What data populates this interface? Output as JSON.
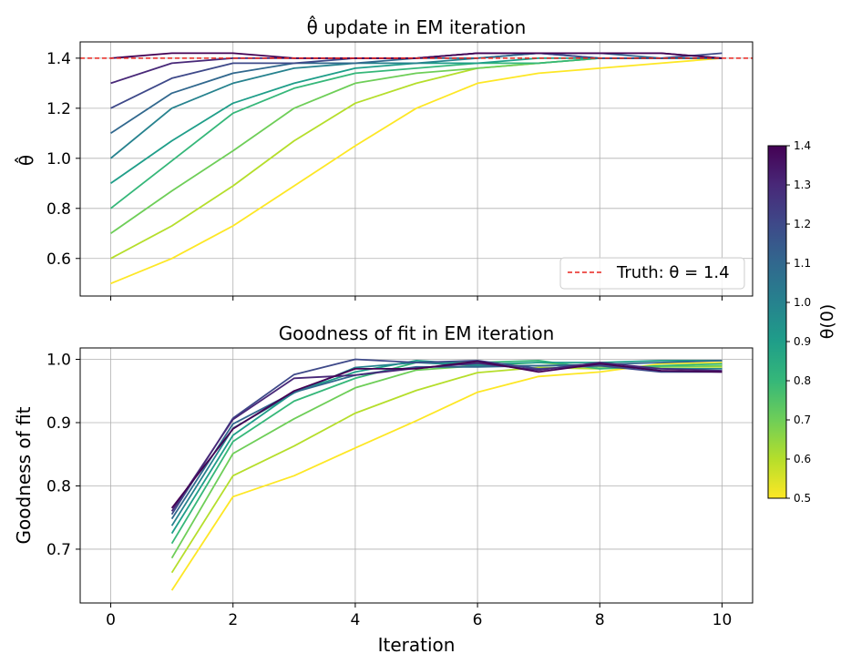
{
  "chart_data": [
    {
      "type": "line",
      "title": "θ̂ update in EM iteration",
      "ylabel": "θ̂",
      "xlabel": "",
      "xlim": [
        -0.5,
        10.5
      ],
      "ylim": [
        0.45,
        1.465
      ],
      "xticks": [
        0,
        2,
        4,
        6,
        8,
        10
      ],
      "yticks": [
        0.6,
        0.8,
        1.0,
        1.2,
        1.4
      ],
      "yticklabels": [
        "0.6",
        "0.8",
        "1.0",
        "1.2",
        "1.4"
      ],
      "xticklabels_visible": false,
      "grid": true,
      "legend": {
        "position": "lower-right",
        "entries": [
          "Truth: θ = 1.4"
        ]
      },
      "reference_line": {
        "y": 1.4,
        "color": "#e8251e",
        "style": "dashed",
        "label": "Truth: θ = 1.4"
      },
      "x": [
        0,
        1,
        2,
        3,
        4,
        5,
        6,
        7,
        8,
        9,
        10
      ],
      "series": [
        {
          "theta0": 0.5,
          "values": [
            0.5,
            0.6,
            0.73,
            0.89,
            1.05,
            1.2,
            1.3,
            1.34,
            1.36,
            1.38,
            1.4
          ]
        },
        {
          "theta0": 0.6,
          "values": [
            0.6,
            0.73,
            0.89,
            1.07,
            1.22,
            1.3,
            1.36,
            1.38,
            1.4,
            1.4,
            1.4
          ]
        },
        {
          "theta0": 0.7,
          "values": [
            0.7,
            0.87,
            1.03,
            1.2,
            1.3,
            1.34,
            1.36,
            1.38,
            1.4,
            1.4,
            1.4
          ]
        },
        {
          "theta0": 0.8,
          "values": [
            0.8,
            0.99,
            1.18,
            1.28,
            1.34,
            1.36,
            1.38,
            1.38,
            1.4,
            1.4,
            1.4
          ]
        },
        {
          "theta0": 0.9,
          "values": [
            0.9,
            1.07,
            1.22,
            1.3,
            1.36,
            1.38,
            1.38,
            1.4,
            1.4,
            1.4,
            1.4
          ]
        },
        {
          "theta0": 1.0,
          "values": [
            1.0,
            1.2,
            1.3,
            1.36,
            1.38,
            1.38,
            1.4,
            1.42,
            1.4,
            1.4,
            1.4
          ]
        },
        {
          "theta0": 1.1,
          "values": [
            1.1,
            1.26,
            1.34,
            1.38,
            1.38,
            1.4,
            1.4,
            1.42,
            1.42,
            1.4,
            1.4
          ]
        },
        {
          "theta0": 1.2,
          "values": [
            1.2,
            1.32,
            1.38,
            1.38,
            1.4,
            1.4,
            1.42,
            1.42,
            1.4,
            1.4,
            1.42
          ]
        },
        {
          "theta0": 1.3,
          "values": [
            1.3,
            1.38,
            1.4,
            1.4,
            1.4,
            1.4,
            1.42,
            1.42,
            1.42,
            1.42,
            1.4
          ]
        },
        {
          "theta0": 1.4,
          "values": [
            1.4,
            1.42,
            1.42,
            1.4,
            1.4,
            1.4,
            1.42,
            1.42,
            1.42,
            1.42,
            1.4
          ]
        }
      ]
    },
    {
      "type": "line",
      "title": "Goodness of fit in EM iteration",
      "xlabel": "Iteration",
      "ylabel": "Goodness of fit",
      "xlim": [
        -0.5,
        10.5
      ],
      "ylim": [
        0.615,
        1.018
      ],
      "xticks": [
        0,
        2,
        4,
        6,
        8,
        10
      ],
      "xticklabels": [
        "0",
        "2",
        "4",
        "6",
        "8",
        "10"
      ],
      "yticks": [
        0.7,
        0.8,
        0.9,
        1.0
      ],
      "yticklabels": [
        "0.7",
        "0.8",
        "0.9",
        "1.0"
      ],
      "grid": true,
      "x": [
        1,
        2,
        3,
        4,
        5,
        6,
        7,
        8,
        9,
        10
      ],
      "series": [
        {
          "theta0": 0.5,
          "values": [
            0.635,
            0.783,
            0.816,
            0.86,
            0.903,
            0.948,
            0.973,
            0.98,
            0.993,
            0.995
          ]
        },
        {
          "theta0": 0.6,
          "values": [
            0.663,
            0.816,
            0.863,
            0.915,
            0.951,
            0.979,
            0.987,
            0.985,
            0.988,
            0.988
          ]
        },
        {
          "theta0": 0.7,
          "values": [
            0.686,
            0.851,
            0.906,
            0.955,
            0.983,
            0.99,
            0.995,
            0.988,
            0.988,
            0.99
          ]
        },
        {
          "theta0": 0.8,
          "values": [
            0.709,
            0.87,
            0.934,
            0.97,
            0.995,
            0.995,
            0.998,
            0.985,
            0.99,
            0.993
          ]
        },
        {
          "theta0": 0.9,
          "values": [
            0.725,
            0.88,
            0.948,
            0.98,
            0.998,
            0.992,
            0.995,
            0.995,
            0.998,
            0.998
          ]
        },
        {
          "theta0": 1.0,
          "values": [
            0.737,
            0.891,
            0.947,
            0.987,
            0.995,
            0.99,
            0.99,
            0.99,
            0.985,
            0.985
          ]
        },
        {
          "theta0": 1.1,
          "values": [
            0.748,
            0.898,
            0.948,
            0.975,
            0.988,
            0.988,
            0.99,
            0.992,
            0.995,
            0.998
          ]
        },
        {
          "theta0": 1.2,
          "values": [
            0.755,
            0.907,
            0.976,
            1.0,
            0.995,
            0.998,
            0.985,
            0.99,
            0.98,
            0.98
          ]
        },
        {
          "theta0": 1.3,
          "values": [
            0.76,
            0.905,
            0.97,
            0.975,
            0.986,
            0.994,
            0.983,
            0.995,
            0.985,
            0.982
          ]
        },
        {
          "theta0": 1.4,
          "values": [
            0.765,
            0.89,
            0.95,
            0.985,
            0.985,
            0.997,
            0.98,
            0.993,
            0.982,
            0.98
          ]
        }
      ]
    }
  ],
  "colorbar": {
    "label": "θ(0)",
    "range": [
      0.5,
      1.4
    ],
    "ticks": [
      "0.5",
      "0.6",
      "0.7",
      "0.8",
      "0.9",
      "1.0",
      "1.1",
      "1.2",
      "1.3",
      "1.4"
    ],
    "colormap": "viridis_r",
    "stops": [
      "#fde725",
      "#b5de2b",
      "#6ece58",
      "#35b779",
      "#1f9e89",
      "#26828e",
      "#31688e",
      "#3e4989",
      "#482878",
      "#440154"
    ]
  }
}
